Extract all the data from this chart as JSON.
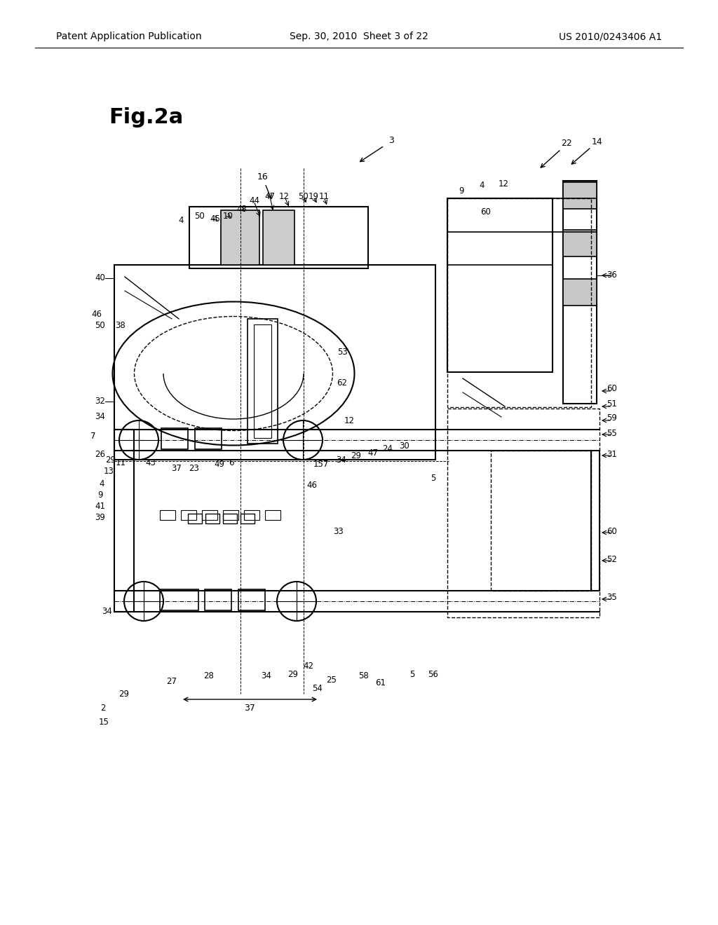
{
  "bg_color": "#ffffff",
  "header_left": "Patent Application Publication",
  "header_center": "Sep. 30, 2010  Sheet 3 of 22",
  "header_right": "US 2010/0243406 A1",
  "fig_label": "Fig.2a",
  "header_fontsize": 10,
  "fig_label_fontsize": 22
}
